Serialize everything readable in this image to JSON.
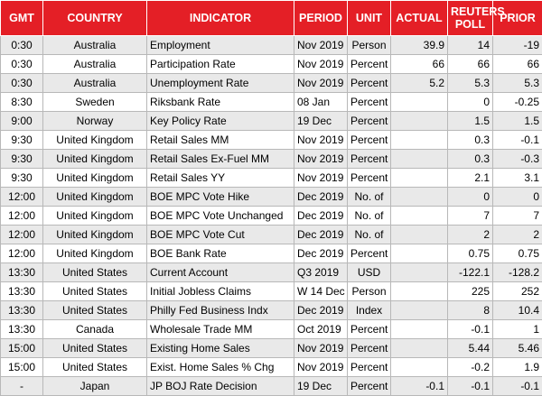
{
  "table": {
    "headers": [
      "GMT",
      "COUNTRY",
      "INDICATOR",
      "PERIOD",
      "UNIT",
      "ACTUAL",
      "REUTERS POLL",
      "PRIOR"
    ],
    "rows": [
      [
        "0:30",
        "Australia",
        "Employment",
        "Nov 2019",
        "Person",
        "39.9",
        "14",
        "-19"
      ],
      [
        "0:30",
        "Australia",
        "Participation Rate",
        "Nov 2019",
        "Percent",
        "66",
        "66",
        "66"
      ],
      [
        "0:30",
        "Australia",
        "Unemployment Rate",
        "Nov 2019",
        "Percent",
        "5.2",
        "5.3",
        "5.3"
      ],
      [
        "8:30",
        "Sweden",
        "Riksbank Rate",
        "08 Jan",
        "Percent",
        null,
        "0",
        "-0.25"
      ],
      [
        "9:00",
        "Norway",
        "Key Policy Rate",
        "19 Dec",
        "Percent",
        null,
        "1.5",
        "1.5"
      ],
      [
        "9:30",
        "United Kingdom",
        "Retail Sales MM",
        "Nov 2019",
        "Percent",
        null,
        "0.3",
        "-0.1"
      ],
      [
        "9:30",
        "United Kingdom",
        "Retail Sales Ex-Fuel MM",
        "Nov 2019",
        "Percent",
        null,
        "0.3",
        "-0.3"
      ],
      [
        "9:30",
        "United Kingdom",
        "Retail Sales YY",
        "Nov 2019",
        "Percent",
        null,
        "2.1",
        "3.1"
      ],
      [
        "12:00",
        "United Kingdom",
        "BOE MPC Vote Hike",
        "Dec 2019",
        "No. of",
        null,
        "0",
        "0"
      ],
      [
        "12:00",
        "United Kingdom",
        "BOE MPC Vote Unchanged",
        "Dec 2019",
        "No. of",
        null,
        "7",
        "7"
      ],
      [
        "12:00",
        "United Kingdom",
        "BOE MPC Vote Cut",
        "Dec 2019",
        "No. of",
        null,
        "2",
        "2"
      ],
      [
        "12:00",
        "United Kingdom",
        "BOE Bank Rate",
        "Dec 2019",
        "Percent",
        null,
        "0.75",
        "0.75"
      ],
      [
        "13:30",
        "United States",
        "Current Account",
        "Q3 2019",
        "USD",
        null,
        "-122.1",
        "-128.2"
      ],
      [
        "13:30",
        "United States",
        "Initial Jobless Claims",
        "W 14 Dec",
        "Person",
        null,
        "225",
        "252"
      ],
      [
        "13:30",
        "United States",
        "Philly Fed Business Indx",
        "Dec 2019",
        "Index",
        null,
        "8",
        "10.4"
      ],
      [
        "13:30",
        "Canada",
        "Wholesale Trade MM",
        "Oct 2019",
        "Percent",
        null,
        "-0.1",
        "1"
      ],
      [
        "15:00",
        "United States",
        "Existing Home Sales",
        "Nov 2019",
        "Percent",
        null,
        "5.44",
        "5.46"
      ],
      [
        "15:00",
        "United States",
        "Exist. Home Sales % Chg",
        "Nov 2019",
        "Percent",
        null,
        "-0.2",
        "1.9"
      ],
      [
        "-",
        "Japan",
        "JP BOJ Rate Decision",
        "19 Dec",
        "Percent",
        "-0.1",
        "-0.1",
        "-0.1"
      ]
    ]
  }
}
